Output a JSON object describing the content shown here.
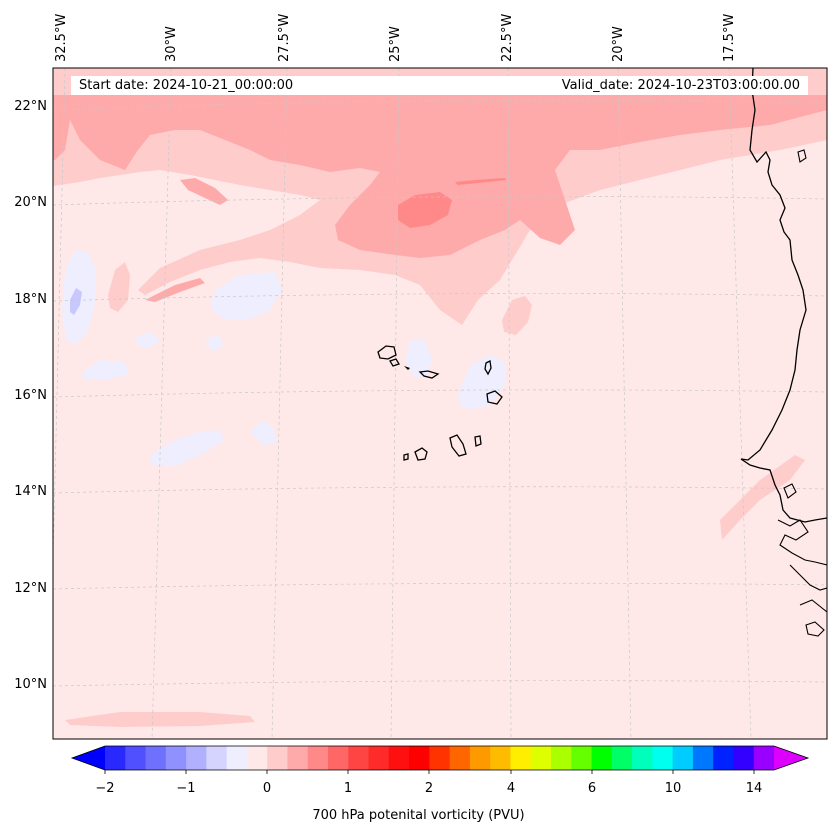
{
  "header": {
    "start_date": "Start date: 2024-10-21_00:00:00",
    "valid_date": "Valid_date: 2024-10-23T03:00:00.00"
  },
  "map": {
    "longitude_labels": [
      "32.5°W",
      "30°W",
      "27.5°W",
      "25°W",
      "22.5°W",
      "20°W",
      "17.5°W"
    ],
    "latitude_labels": [
      "22°N",
      "20°N",
      "18°N",
      "16°N",
      "14°N",
      "12°N",
      "10°N"
    ],
    "background_color": "#ffe8e8"
  },
  "colorbar": {
    "title": "700 hPa potenital vorticity (PVU)",
    "tick_labels": [
      "−2",
      "−1",
      "0",
      "1",
      "2",
      "4",
      "6",
      "10",
      "14"
    ],
    "colors": [
      "#0000ff",
      "#2828ff",
      "#5050ff",
      "#7070ff",
      "#9090ff",
      "#b0b0ff",
      "#d4d4ff",
      "#eeeeff",
      "#ffe8e8",
      "#ffcccc",
      "#ffaaaa",
      "#ff8888",
      "#ff6666",
      "#ff4444",
      "#ff2a2a",
      "#ff1010",
      "#ff0000",
      "#ff3300",
      "#ff6600",
      "#ff9900",
      "#ffbb00",
      "#ffee00",
      "#ddff00",
      "#aaff00",
      "#66ff00",
      "#00ff00",
      "#00ff66",
      "#00ffbb",
      "#00ffee",
      "#00ccff",
      "#0077ff",
      "#0022ff",
      "#3300ff",
      "#9900ff",
      "#dd00ff"
    ]
  }
}
